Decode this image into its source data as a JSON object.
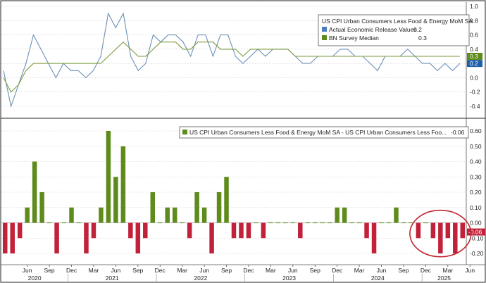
{
  "chart_data": [
    {
      "type": "line",
      "title": "",
      "legend": {
        "title": "US CPI Urban Consumers Less Food & Energy MoM SA",
        "placement": "top-right",
        "entries": [
          {
            "label": "Actual Economic Release Values",
            "value": "0.2",
            "color": "#4a7fbf"
          },
          {
            "label": "BN Survey Median",
            "value": "0.3",
            "color": "#5e8c1c"
          }
        ]
      },
      "ylim": [
        -0.5,
        1.0
      ],
      "yticks": [
        "1.0",
        "0.8",
        "0.6",
        "0.4",
        "0.2",
        "0.0",
        "-0.2",
        "-0.4"
      ],
      "last_value_tags": [
        {
          "text": "0.3",
          "color": "#5e8c1c"
        },
        {
          "text": "0.2",
          "color": "#1f5fa8"
        }
      ],
      "grid": true,
      "series": [
        {
          "name": "Actual Economic Release Values",
          "color": "#6c8fb8",
          "values": [
            0.1,
            -0.4,
            -0.1,
            0.2,
            0.6,
            0.4,
            0.2,
            0.0,
            0.2,
            0.1,
            0.1,
            0.0,
            0.1,
            0.3,
            0.9,
            0.7,
            0.9,
            0.3,
            0.1,
            0.2,
            0.6,
            0.5,
            0.6,
            0.6,
            0.5,
            0.3,
            0.6,
            0.6,
            0.3,
            0.6,
            0.6,
            0.3,
            0.2,
            0.3,
            0.4,
            0.3,
            0.4,
            0.4,
            0.4,
            0.3,
            0.2,
            0.2,
            0.3,
            0.3,
            0.3,
            0.4,
            0.4,
            0.3,
            0.3,
            0.2,
            0.1,
            0.3,
            0.3,
            0.3,
            0.4,
            0.3,
            0.2,
            0.2,
            0.1,
            0.2,
            0.1,
            0.2
          ]
        },
        {
          "name": "BN Survey Median",
          "color": "#7a9a3c",
          "values": [
            0.0,
            -0.2,
            -0.1,
            0.1,
            0.2,
            0.2,
            0.2,
            0.2,
            0.2,
            0.2,
            0.2,
            0.2,
            0.2,
            0.2,
            0.3,
            0.4,
            0.5,
            0.4,
            0.3,
            0.3,
            0.4,
            0.5,
            0.5,
            0.5,
            0.4,
            0.4,
            0.5,
            0.5,
            0.5,
            0.4,
            0.4,
            0.4,
            0.3,
            0.4,
            0.4,
            0.4,
            0.4,
            0.4,
            0.4,
            0.3,
            0.3,
            0.3,
            0.3,
            0.3,
            0.3,
            0.3,
            0.3,
            0.3,
            0.3,
            0.3,
            0.3,
            0.3,
            0.3,
            0.3,
            0.3,
            0.3,
            0.3,
            0.3,
            0.3,
            0.3,
            0.3,
            0.3
          ]
        }
      ]
    },
    {
      "type": "bar",
      "title": "",
      "legend": {
        "label": "US CPI Urban Consumers Less Food & Energy MoM SA - US CPI Urban Consumers Less Foo...",
        "value": "-0.06",
        "color": "#5e8c1c",
        "placement": "top-right"
      },
      "ylim": [
        -0.25,
        0.7
      ],
      "yticks": [
        "0.60",
        "0.50",
        "0.40",
        "0.30",
        "0.20",
        "0.10",
        "0.00",
        "-0.10",
        "-0.20"
      ],
      "last_value_tag": {
        "text": "-0.06",
        "color": "#c2213a"
      },
      "positive_color": "#5e8c1c",
      "negative_color": "#c2213a",
      "grid": true,
      "annotation": {
        "type": "circle",
        "color": "#c0262f",
        "around": "last six bars (2025)"
      },
      "values": [
        -0.2,
        -0.2,
        -0.1,
        0.1,
        0.4,
        0.2,
        0.0,
        -0.2,
        0.0,
        0.1,
        0.0,
        -0.2,
        -0.1,
        0.1,
        0.6,
        0.3,
        0.5,
        -0.1,
        -0.2,
        -0.1,
        0.2,
        0.0,
        0.1,
        0.1,
        0.0,
        -0.1,
        0.2,
        0.1,
        -0.2,
        0.2,
        0.3,
        -0.1,
        -0.1,
        -0.1,
        0.0,
        -0.1,
        0.0,
        0.0,
        0.0,
        0.0,
        -0.1,
        0.0,
        0.0,
        0.0,
        0.0,
        0.1,
        0.1,
        0.0,
        0.0,
        -0.1,
        -0.2,
        0.0,
        0.0,
        0.1,
        0.0,
        0.0,
        -0.1,
        0.0,
        -0.1,
        -0.2,
        -0.1,
        -0.2,
        -0.1
      ],
      "tick_months": [
        "Jun",
        "Sep",
        "Dec",
        "Mar",
        "Jun",
        "Sep",
        "Dec",
        "Mar",
        "Jun",
        "Sep",
        "Dec",
        "Mar",
        "Jun",
        "Sep",
        "Dec",
        "Mar",
        "Jun",
        "Sep",
        "Dec",
        "Mar",
        "Jun"
      ],
      "year_labels": [
        "2020",
        "2021",
        "2022",
        "2023",
        "2024",
        "2025"
      ]
    }
  ]
}
